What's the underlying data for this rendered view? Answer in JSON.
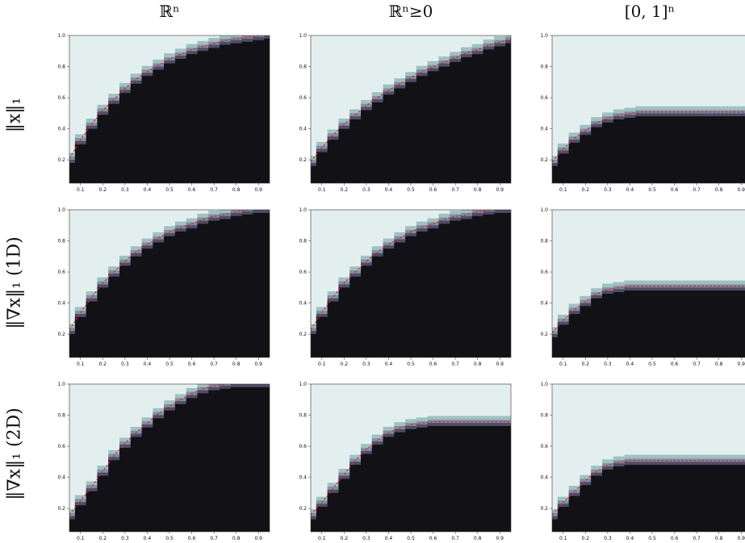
{
  "column_titles": [
    "ℝⁿ",
    "ℝⁿ≥0",
    "[0, 1]ⁿ"
  ],
  "row_titles": [
    "‖x‖₁",
    "‖∇x‖₁ (1D)",
    "‖∇x‖₁ (2D)"
  ],
  "colors": {
    "background_region": "#e3efef",
    "band_light": "#9fc1c1",
    "band_mid": "#7f8fa0",
    "band_dark": "#4b4e66",
    "dark_region": "#121116",
    "curve": "#d62839"
  },
  "chart_data": [
    {
      "type": "heatmap",
      "row": 0,
      "col": 0,
      "xlim": [
        0.05,
        0.95
      ],
      "ylim": [
        0.05,
        1.0
      ],
      "xticks": [
        "0.1",
        "0.2",
        "0.3",
        "0.4",
        "0.5",
        "0.6",
        "0.7",
        "0.8",
        "0.9"
      ],
      "yticks": [
        "0.2",
        "0.4",
        "0.6",
        "0.8",
        "1.0"
      ],
      "x": [
        0.05,
        0.1,
        0.15,
        0.2,
        0.25,
        0.3,
        0.35,
        0.4,
        0.45,
        0.5,
        0.55,
        0.6,
        0.65,
        0.7,
        0.75,
        0.8,
        0.85,
        0.9,
        0.95
      ],
      "boundary": [
        0.2,
        0.32,
        0.42,
        0.51,
        0.58,
        0.65,
        0.71,
        0.76,
        0.8,
        0.84,
        0.87,
        0.9,
        0.92,
        0.94,
        0.96,
        0.97,
        0.98,
        0.99,
        1.0
      ]
    },
    {
      "type": "heatmap",
      "row": 0,
      "col": 1,
      "xlim": [
        0.05,
        0.95
      ],
      "ylim": [
        0.05,
        1.0
      ],
      "xticks": [
        "0.1",
        "0.2",
        "0.3",
        "0.4",
        "0.5",
        "0.6",
        "0.7",
        "0.8",
        "0.9"
      ],
      "yticks": [
        "0.2",
        "0.4",
        "0.6",
        "0.8",
        "1.0"
      ],
      "x": [
        0.05,
        0.1,
        0.15,
        0.2,
        0.25,
        0.3,
        0.35,
        0.4,
        0.45,
        0.5,
        0.55,
        0.6,
        0.65,
        0.7,
        0.75,
        0.8,
        0.85,
        0.9,
        0.95
      ],
      "boundary": [
        0.18,
        0.27,
        0.35,
        0.42,
        0.48,
        0.54,
        0.59,
        0.64,
        0.68,
        0.72,
        0.76,
        0.79,
        0.82,
        0.85,
        0.88,
        0.9,
        0.93,
        0.95,
        0.97
      ]
    },
    {
      "type": "heatmap",
      "row": 0,
      "col": 2,
      "xlim": [
        0.05,
        0.95
      ],
      "ylim": [
        0.05,
        1.0
      ],
      "xticks": [
        "0.1",
        "0.2",
        "0.3",
        "0.4",
        "0.5",
        "0.6",
        "0.7",
        "0.8",
        "0.9"
      ],
      "yticks": [
        "0.2",
        "0.4",
        "0.6",
        "0.8",
        "1.0"
      ],
      "x": [
        0.05,
        0.1,
        0.15,
        0.2,
        0.25,
        0.3,
        0.35,
        0.4,
        0.45,
        0.5,
        0.55,
        0.6,
        0.65,
        0.7,
        0.75,
        0.8,
        0.85,
        0.9,
        0.95
      ],
      "boundary": [
        0.18,
        0.26,
        0.33,
        0.38,
        0.43,
        0.46,
        0.48,
        0.49,
        0.5,
        0.5,
        0.5,
        0.5,
        0.5,
        0.5,
        0.5,
        0.5,
        0.5,
        0.5,
        0.5
      ]
    },
    {
      "type": "heatmap",
      "row": 1,
      "col": 0,
      "xlim": [
        0.05,
        0.95
      ],
      "ylim": [
        0.05,
        1.0
      ],
      "xticks": [
        "0.1",
        "0.2",
        "0.3",
        "0.4",
        "0.5",
        "0.6",
        "0.7",
        "0.8",
        "0.9"
      ],
      "yticks": [
        "0.2",
        "0.4",
        "0.6",
        "0.8",
        "1.0"
      ],
      "x": [
        0.05,
        0.1,
        0.15,
        0.2,
        0.25,
        0.3,
        0.35,
        0.4,
        0.45,
        0.5,
        0.55,
        0.6,
        0.65,
        0.7,
        0.75,
        0.8,
        0.85,
        0.9,
        0.95
      ],
      "boundary": [
        0.22,
        0.33,
        0.43,
        0.52,
        0.59,
        0.66,
        0.72,
        0.77,
        0.81,
        0.85,
        0.88,
        0.9,
        0.93,
        0.95,
        0.96,
        0.98,
        0.99,
        1.0,
        1.0
      ]
    },
    {
      "type": "heatmap",
      "row": 1,
      "col": 1,
      "xlim": [
        0.05,
        0.95
      ],
      "ylim": [
        0.05,
        1.0
      ],
      "xticks": [
        "0.1",
        "0.2",
        "0.3",
        "0.4",
        "0.5",
        "0.6",
        "0.7",
        "0.8",
        "0.9"
      ],
      "yticks": [
        "0.2",
        "0.4",
        "0.6",
        "0.8",
        "1.0"
      ],
      "x": [
        0.05,
        0.1,
        0.15,
        0.2,
        0.25,
        0.3,
        0.35,
        0.4,
        0.45,
        0.5,
        0.55,
        0.6,
        0.65,
        0.7,
        0.75,
        0.8,
        0.85,
        0.9,
        0.95
      ],
      "boundary": [
        0.22,
        0.33,
        0.43,
        0.52,
        0.59,
        0.66,
        0.72,
        0.77,
        0.81,
        0.85,
        0.88,
        0.9,
        0.93,
        0.95,
        0.96,
        0.98,
        0.99,
        1.0,
        1.0
      ]
    },
    {
      "type": "heatmap",
      "row": 1,
      "col": 2,
      "xlim": [
        0.05,
        0.95
      ],
      "ylim": [
        0.05,
        1.0
      ],
      "xticks": [
        "0.1",
        "0.2",
        "0.3",
        "0.4",
        "0.5",
        "0.6",
        "0.7",
        "0.8",
        "0.9"
      ],
      "yticks": [
        "0.2",
        "0.4",
        "0.6",
        "0.8",
        "1.0"
      ],
      "x": [
        0.05,
        0.1,
        0.15,
        0.2,
        0.25,
        0.3,
        0.35,
        0.4,
        0.45,
        0.5,
        0.55,
        0.6,
        0.65,
        0.7,
        0.75,
        0.8,
        0.85,
        0.9,
        0.95
      ],
      "boundary": [
        0.2,
        0.28,
        0.35,
        0.4,
        0.45,
        0.48,
        0.49,
        0.5,
        0.5,
        0.5,
        0.5,
        0.5,
        0.5,
        0.5,
        0.5,
        0.5,
        0.5,
        0.5,
        0.5
      ]
    },
    {
      "type": "heatmap",
      "row": 2,
      "col": 0,
      "xlim": [
        0.05,
        0.95
      ],
      "ylim": [
        0.05,
        1.0
      ],
      "xticks": [
        "0.1",
        "0.2",
        "0.3",
        "0.4",
        "0.5",
        "0.6",
        "0.7",
        "0.8",
        "0.9"
      ],
      "yticks": [
        "0.2",
        "0.4",
        "0.6",
        "0.8",
        "1.0"
      ],
      "x": [
        0.05,
        0.1,
        0.15,
        0.2,
        0.25,
        0.3,
        0.35,
        0.4,
        0.45,
        0.5,
        0.55,
        0.6,
        0.65,
        0.7,
        0.75,
        0.8,
        0.85,
        0.9,
        0.95
      ],
      "boundary": [
        0.15,
        0.24,
        0.33,
        0.43,
        0.53,
        0.61,
        0.68,
        0.74,
        0.8,
        0.85,
        0.89,
        0.93,
        0.96,
        0.98,
        0.99,
        1.0,
        1.0,
        1.0,
        1.0
      ]
    },
    {
      "type": "heatmap",
      "row": 2,
      "col": 1,
      "xlim": [
        0.05,
        0.95
      ],
      "ylim": [
        0.05,
        1.0
      ],
      "xticks": [
        "0.1",
        "0.2",
        "0.3",
        "0.4",
        "0.5",
        "0.6",
        "0.7",
        "0.8",
        "0.9"
      ],
      "yticks": [
        "0.2",
        "0.4",
        "0.6",
        "0.8",
        "1.0"
      ],
      "x": [
        0.05,
        0.1,
        0.15,
        0.2,
        0.25,
        0.3,
        0.35,
        0.4,
        0.45,
        0.5,
        0.55,
        0.6,
        0.65,
        0.7,
        0.75,
        0.8,
        0.85,
        0.9,
        0.95
      ],
      "boundary": [
        0.15,
        0.23,
        0.32,
        0.41,
        0.5,
        0.57,
        0.63,
        0.68,
        0.71,
        0.73,
        0.74,
        0.75,
        0.75,
        0.75,
        0.75,
        0.75,
        0.75,
        0.75,
        0.75
      ]
    },
    {
      "type": "heatmap",
      "row": 2,
      "col": 2,
      "xlim": [
        0.05,
        0.95
      ],
      "ylim": [
        0.05,
        1.0
      ],
      "xticks": [
        "0.1",
        "0.2",
        "0.3",
        "0.4",
        "0.5",
        "0.6",
        "0.7",
        "0.8",
        "0.9"
      ],
      "yticks": [
        "0.2",
        "0.4",
        "0.6",
        "0.8",
        "1.0"
      ],
      "x": [
        0.05,
        0.1,
        0.15,
        0.2,
        0.25,
        0.3,
        0.35,
        0.4,
        0.45,
        0.5,
        0.55,
        0.6,
        0.65,
        0.7,
        0.75,
        0.8,
        0.85,
        0.9,
        0.95
      ],
      "boundary": [
        0.15,
        0.23,
        0.3,
        0.37,
        0.43,
        0.47,
        0.49,
        0.5,
        0.5,
        0.5,
        0.5,
        0.5,
        0.5,
        0.5,
        0.5,
        0.5,
        0.5,
        0.5,
        0.5
      ]
    }
  ]
}
